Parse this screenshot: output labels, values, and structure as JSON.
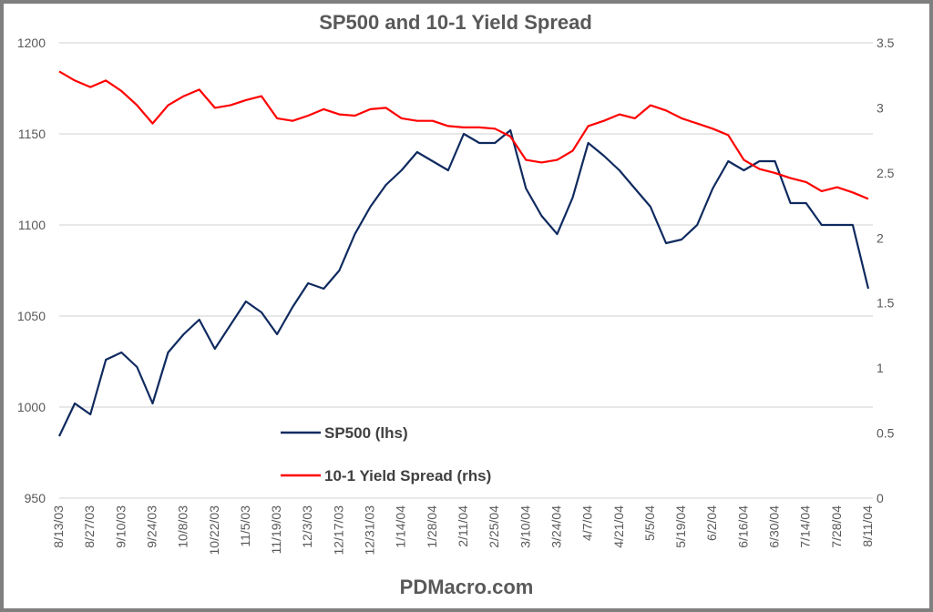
{
  "chart_data": {
    "type": "line",
    "title": "SP500 and 10-1 Yield Spread",
    "footer": "PDMacro.com",
    "y_left": {
      "ticks": [
        "950",
        "1000",
        "1050",
        "1100",
        "1150",
        "1200"
      ],
      "range": [
        950,
        1200
      ]
    },
    "y_right": {
      "ticks": [
        "0",
        "0.5",
        "1",
        "1.5",
        "2",
        "2.5",
        "3",
        "3.5"
      ],
      "range": [
        0,
        3.5
      ]
    },
    "x_ticks": [
      "8/13/03",
      "8/27/03",
      "9/10/03",
      "9/24/03",
      "10/8/03",
      "10/22/03",
      "11/5/03",
      "11/19/03",
      "12/3/03",
      "12/17/03",
      "12/31/03",
      "1/14/04",
      "1/28/04",
      "2/11/04",
      "2/25/04",
      "3/10/04",
      "3/24/04",
      "4/7/04",
      "4/21/04",
      "5/5/04",
      "5/19/04",
      "6/2/04",
      "6/16/04",
      "6/30/04",
      "7/14/04",
      "7/28/04",
      "8/11/04"
    ],
    "grid": "horizontal",
    "legend_placement": "bottom-center inside plot",
    "x": [
      "8/13/03",
      "8/20/03",
      "8/27/03",
      "9/3/03",
      "9/10/03",
      "9/17/03",
      "9/24/03",
      "10/1/03",
      "10/8/03",
      "10/15/03",
      "10/22/03",
      "10/29/03",
      "11/5/03",
      "11/12/03",
      "11/19/03",
      "11/26/03",
      "12/3/03",
      "12/10/03",
      "12/17/03",
      "12/24/03",
      "12/31/03",
      "1/7/04",
      "1/14/04",
      "1/21/04",
      "1/28/04",
      "2/4/04",
      "2/11/04",
      "2/18/04",
      "2/25/04",
      "3/3/04",
      "3/10/04",
      "3/17/04",
      "3/24/04",
      "3/31/04",
      "4/7/04",
      "4/14/04",
      "4/21/04",
      "4/28/04",
      "5/5/04",
      "5/12/04",
      "5/19/04",
      "5/26/04",
      "6/2/04",
      "6/9/04",
      "6/16/04",
      "6/23/04",
      "6/30/04",
      "7/7/04",
      "7/14/04",
      "7/21/04",
      "7/28/04",
      "8/4/04",
      "8/11/04"
    ],
    "series": [
      {
        "name": "SP500 (lhs)",
        "axis": "left",
        "color": "#0f2a5f",
        "values": [
          984,
          1002,
          996,
          1026,
          1030,
          1022,
          1002,
          1030,
          1040,
          1048,
          1032,
          1045,
          1058,
          1052,
          1040,
          1055,
          1068,
          1065,
          1075,
          1095,
          1110,
          1122,
          1130,
          1140,
          1135,
          1130,
          1150,
          1145,
          1145,
          1152,
          1120,
          1105,
          1095,
          1115,
          1145,
          1138,
          1130,
          1120,
          1110,
          1090,
          1092,
          1100,
          1120,
          1135,
          1130,
          1135,
          1135,
          1112,
          1112,
          1100,
          1100,
          1100,
          1065
        ]
      },
      {
        "name": "10-1 Yield Spread (rhs)",
        "axis": "right",
        "color": "#ff0000",
        "values": [
          3.28,
          3.21,
          3.16,
          3.21,
          3.13,
          3.02,
          2.88,
          3.02,
          3.09,
          3.14,
          3.0,
          3.02,
          3.06,
          3.09,
          2.92,
          2.9,
          2.94,
          2.99,
          2.95,
          2.94,
          2.99,
          3.0,
          2.92,
          2.9,
          2.9,
          2.86,
          2.85,
          2.85,
          2.84,
          2.78,
          2.6,
          2.58,
          2.6,
          2.67,
          2.86,
          2.9,
          2.95,
          2.92,
          3.02,
          2.98,
          2.92,
          2.88,
          2.84,
          2.79,
          2.6,
          2.53,
          2.5,
          2.46,
          2.43,
          2.36,
          2.39,
          2.35,
          2.3
        ]
      }
    ]
  }
}
